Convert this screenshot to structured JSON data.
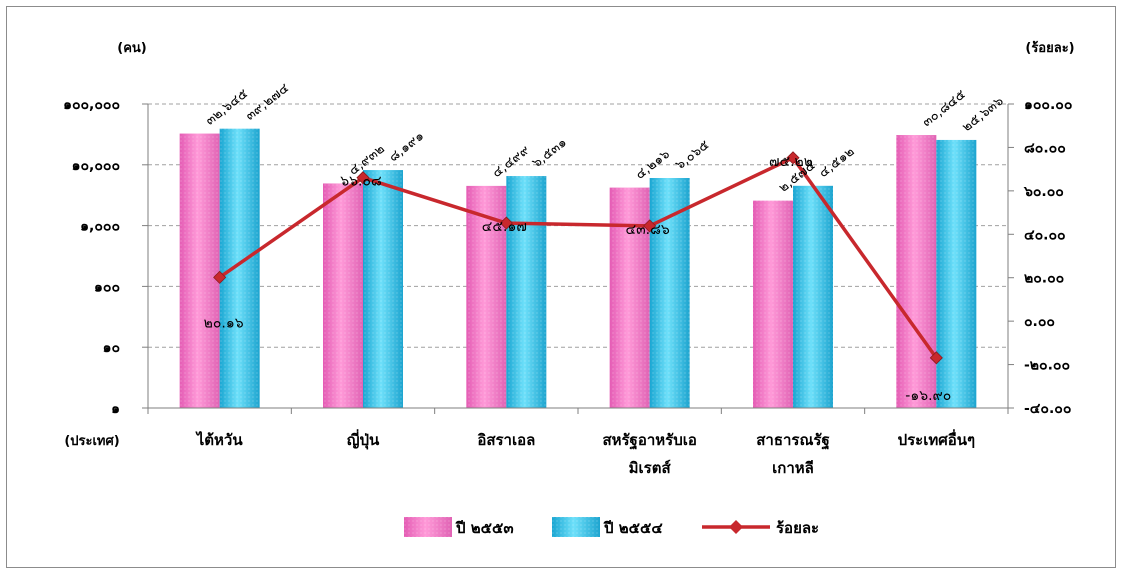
{
  "chart_data": {
    "type": "bar",
    "units": {
      "left": "(คน)",
      "right": "(ร้อยละ)",
      "category": "(ประเทศ)"
    },
    "categories": [
      [
        "ไต้หวัน"
      ],
      [
        "ญี่ปุ่น"
      ],
      [
        "อิสราเอล"
      ],
      [
        "สหรัฐอาหรับเอ",
        "มิเรตส์"
      ],
      [
        "สาธารณรัฐ",
        "เกาหลี"
      ],
      [
        "ประเทศอื่นๆ"
      ]
    ],
    "left_axis": {
      "scale": "log",
      "ylim": [
        1,
        100000
      ],
      "ticks": [
        1,
        10,
        100,
        1000,
        10000,
        100000
      ],
      "tick_labels": [
        "๑",
        "๑๐",
        "๑๐๐",
        "๑,๐๐๐",
        "๑๐,๐๐๐",
        "๑๐๐,๐๐๐"
      ]
    },
    "right_axis": {
      "ylim": [
        -40,
        100
      ],
      "ticks": [
        -40,
        -20,
        0,
        20,
        40,
        60,
        80,
        100
      ],
      "tick_labels": [
        "-๔๐.๐๐",
        "-๒๐.๐๐",
        "๐.๐๐",
        "๒๐.๐๐",
        "๔๐.๐๐",
        "๖๐.๐๐",
        "๘๐.๐๐",
        "๑๐๐.๐๐"
      ]
    },
    "series": [
      {
        "name": "ปี ๒๕๕๓",
        "type": "bar",
        "axis": "left",
        "color": "#f07ac8",
        "values": [
          32645,
          4932,
          4499,
          4216,
          2575,
          30845
        ],
        "labels": [
          "๓๒,๖๔๕",
          "๔,๙๓๒",
          "๔,๔๙๙",
          "๔,๒๑๖",
          "๒,๕๗๕",
          "๓๐,๘๔๕"
        ]
      },
      {
        "name": "ปี ๒๕๕๔",
        "type": "bar",
        "axis": "left",
        "color": "#3cc8ec",
        "values": [
          39274,
          8191,
          6531,
          6065,
          4512,
          25636
        ],
        "labels": [
          "๓๙,๒๗๔",
          "๘,๑๙๑",
          "๖,๕๓๑",
          "๖,๐๖๕",
          "๔,๕๑๒",
          "๒๕,๖๓๖"
        ]
      },
      {
        "name": "ร้อยละ",
        "type": "line",
        "axis": "right",
        "color": "#c8282d",
        "values": [
          20.16,
          66.08,
          45.17,
          43.86,
          75.22,
          -16.9
        ],
        "labels": [
          "๒๐.๑๖",
          "๖๖.๐๘",
          "๔๕.๑๗",
          "๔๓.๘๖",
          "๗๕.๒๒",
          "-๑๖.๙๐"
        ]
      }
    ],
    "grid": true,
    "legend": "bottom-center"
  }
}
